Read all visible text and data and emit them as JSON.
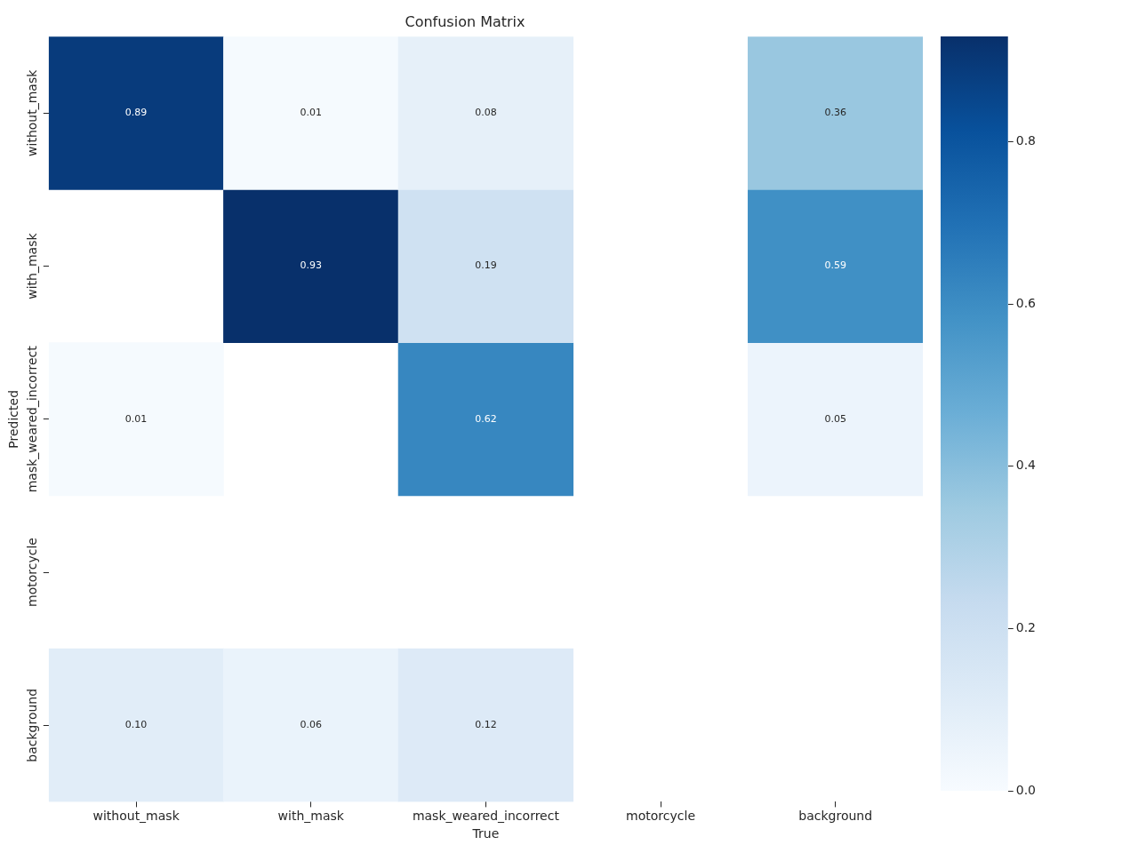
{
  "chart_data": {
    "type": "heatmap",
    "title": "Confusion Matrix",
    "xlabel": "True",
    "ylabel": "Predicted",
    "categories": [
      "without_mask",
      "with_mask",
      "mask_weared_incorrect",
      "motorcycle",
      "background"
    ],
    "y_categories": [
      "without_mask",
      "with_mask",
      "mask_weared_incorrect",
      "motorcycle",
      "background"
    ],
    "cells": [
      [
        0.89,
        0.01,
        0.08,
        null,
        0.36
      ],
      [
        null,
        0.93,
        0.19,
        null,
        0.59
      ],
      [
        0.01,
        null,
        0.62,
        null,
        0.05
      ],
      [
        null,
        null,
        null,
        null,
        null
      ],
      [
        0.1,
        0.06,
        0.12,
        null,
        null
      ]
    ],
    "cell_labels": [
      [
        "0.89",
        "0.01",
        "0.08",
        null,
        "0.36"
      ],
      [
        null,
        "0.93",
        "0.19",
        null,
        "0.59"
      ],
      [
        "0.01",
        null,
        "0.62",
        null,
        "0.05"
      ],
      [
        null,
        null,
        null,
        null,
        null
      ],
      [
        "0.10",
        "0.06",
        "0.12",
        null,
        null
      ]
    ],
    "clim": [
      0,
      0.93
    ],
    "cticks": [
      {
        "value": 0,
        "label": "0.0"
      },
      {
        "value": 0.2,
        "label": "0.2"
      },
      {
        "value": 0.4,
        "label": "0.4"
      },
      {
        "value": 0.6,
        "label": "0.6"
      },
      {
        "value": 0.8,
        "label": "0.8"
      }
    ]
  }
}
